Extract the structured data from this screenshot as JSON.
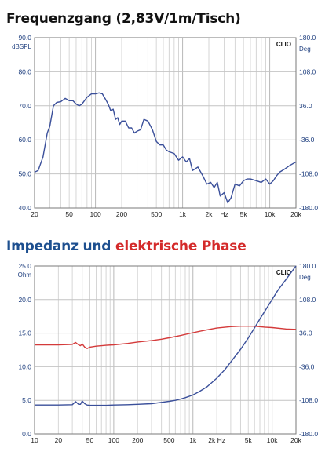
{
  "chart_data": [
    {
      "type": "line",
      "title": "Frequenzgang (2,83V/1m/Tisch)",
      "badge": "CLIO",
      "x_scale": "log",
      "xlim": [
        20,
        20000
      ],
      "x_ticks": [
        {
          "v": 20,
          "label": "20"
        },
        {
          "v": 50,
          "label": "50"
        },
        {
          "v": 100,
          "label": "100"
        },
        {
          "v": 200,
          "label": "200"
        },
        {
          "v": 500,
          "label": "500"
        },
        {
          "v": 1000,
          "label": "1k"
        },
        {
          "v": 2000,
          "label": "2k"
        },
        {
          "v": 3000,
          "label": "Hz"
        },
        {
          "v": 5000,
          "label": "5k"
        },
        {
          "v": 10000,
          "label": "10k"
        },
        {
          "v": 20000,
          "label": "20k"
        }
      ],
      "ylabel_left": "dBSPL",
      "ylim_left": [
        40,
        90
      ],
      "y_ticks_left": [
        "40.0",
        "50.0",
        "60.0",
        "70.0",
        "80.0",
        "90.0"
      ],
      "ylabel_right": "Deg",
      "ylim_right": [
        -180,
        180
      ],
      "y_ticks_right": [
        "-180.0",
        "-108.0",
        "-36.0",
        "36.0",
        "108.0",
        "180.0"
      ],
      "grid": true,
      "series": [
        {
          "axis": "left",
          "color": "#3a4f9a",
          "x": [
            20,
            22,
            25,
            28,
            30,
            33,
            36,
            40,
            45,
            50,
            55,
            60,
            65,
            70,
            80,
            90,
            100,
            110,
            120,
            130,
            140,
            150,
            160,
            170,
            180,
            190,
            200,
            220,
            240,
            260,
            280,
            300,
            330,
            360,
            400,
            450,
            500,
            550,
            600,
            650,
            700,
            800,
            900,
            1000,
            1100,
            1200,
            1300,
            1500,
            1700,
            1900,
            2100,
            2300,
            2500,
            2700,
            3000,
            3300,
            3600,
            4000,
            4500,
            5000,
            5500,
            6000,
            7000,
            8000,
            9000,
            10000,
            11000,
            12000,
            13000,
            15000,
            17000,
            20000
          ],
          "y": [
            50.5,
            51,
            55,
            62,
            64,
            70,
            71,
            71.2,
            72.2,
            71.5,
            71.5,
            70.5,
            70,
            70.5,
            72.5,
            73.5,
            73.5,
            73.8,
            73.5,
            72,
            70.5,
            68.5,
            69,
            66,
            66.5,
            64.5,
            65.5,
            65.5,
            63.5,
            63.5,
            62,
            62.5,
            63,
            66,
            65.5,
            63,
            59.5,
            58.5,
            58.5,
            57,
            56.5,
            56,
            54,
            55,
            53.5,
            54.5,
            51,
            52,
            49.5,
            47,
            47.5,
            46,
            47.5,
            43.5,
            44.5,
            41.5,
            43,
            47,
            46.5,
            48,
            48.5,
            48.5,
            48,
            47.5,
            48.5,
            47,
            48,
            49.5,
            50.5,
            51.5,
            52.5,
            53.5
          ]
        }
      ]
    },
    {
      "type": "line",
      "title": "Impedanz und elektrische Phase",
      "title_parts": [
        "Impedanz und ",
        "elektrische Phase"
      ],
      "badge": "CLIO",
      "x_scale": "log",
      "xlim": [
        10,
        20000
      ],
      "x_ticks": [
        {
          "v": 10,
          "label": "10"
        },
        {
          "v": 20,
          "label": "20"
        },
        {
          "v": 50,
          "label": "50"
        },
        {
          "v": 100,
          "label": "100"
        },
        {
          "v": 200,
          "label": "200"
        },
        {
          "v": 500,
          "label": "500"
        },
        {
          "v": 1000,
          "label": "1k"
        },
        {
          "v": 2000,
          "label": "2k Hz"
        },
        {
          "v": 5000,
          "label": "5k"
        },
        {
          "v": 10000,
          "label": "10k"
        },
        {
          "v": 20000,
          "label": "20k"
        }
      ],
      "ylabel_left": "Ohm",
      "ylim_left": [
        0,
        25
      ],
      "y_ticks_left": [
        "0.0",
        "5.0",
        "10.0",
        "15.0",
        "20.0",
        "25.0"
      ],
      "ylabel_right": "Deg",
      "ylim_right": [
        -180,
        180
      ],
      "y_ticks_right": [
        "-180.0",
        "-108.0",
        "-36.0",
        "36.0",
        "108.0",
        "180.0"
      ],
      "grid": true,
      "series": [
        {
          "axis": "left",
          "color": "#3a4f9a",
          "x": [
            10,
            20,
            30,
            33,
            36,
            38,
            40,
            43,
            46,
            50,
            60,
            80,
            100,
            150,
            200,
            300,
            400,
            500,
            600,
            700,
            800,
            1000,
            1200,
            1500,
            2000,
            2500,
            3000,
            4000,
            5000,
            6000,
            7000,
            8000,
            10000,
            12000,
            15000,
            20000
          ],
          "y": [
            4.3,
            4.3,
            4.35,
            4.8,
            4.4,
            4.4,
            4.9,
            4.5,
            4.3,
            4.25,
            4.25,
            4.25,
            4.3,
            4.35,
            4.4,
            4.5,
            4.7,
            4.85,
            5.0,
            5.2,
            5.4,
            5.8,
            6.3,
            7.0,
            8.3,
            9.5,
            10.7,
            12.6,
            14.3,
            15.8,
            17.1,
            18.2,
            20.0,
            21.5,
            23.0,
            25.0
          ]
        },
        {
          "axis": "right",
          "color": "#d43a3a",
          "x": [
            10,
            20,
            30,
            33,
            36,
            38,
            40,
            43,
            46,
            50,
            60,
            80,
            100,
            150,
            200,
            300,
            400,
            500,
            700,
            1000,
            1500,
            2000,
            3000,
            4000,
            5000,
            6000,
            8000,
            10000,
            15000,
            20000
          ],
          "y": [
            11,
            11,
            12,
            16,
            11,
            9,
            13,
            6,
            3,
            6,
            8,
            10,
            11,
            14,
            17,
            20,
            23,
            26,
            31,
            37,
            43,
            47,
            50,
            51,
            51,
            51,
            49,
            48,
            45,
            44
          ]
        }
      ]
    }
  ]
}
